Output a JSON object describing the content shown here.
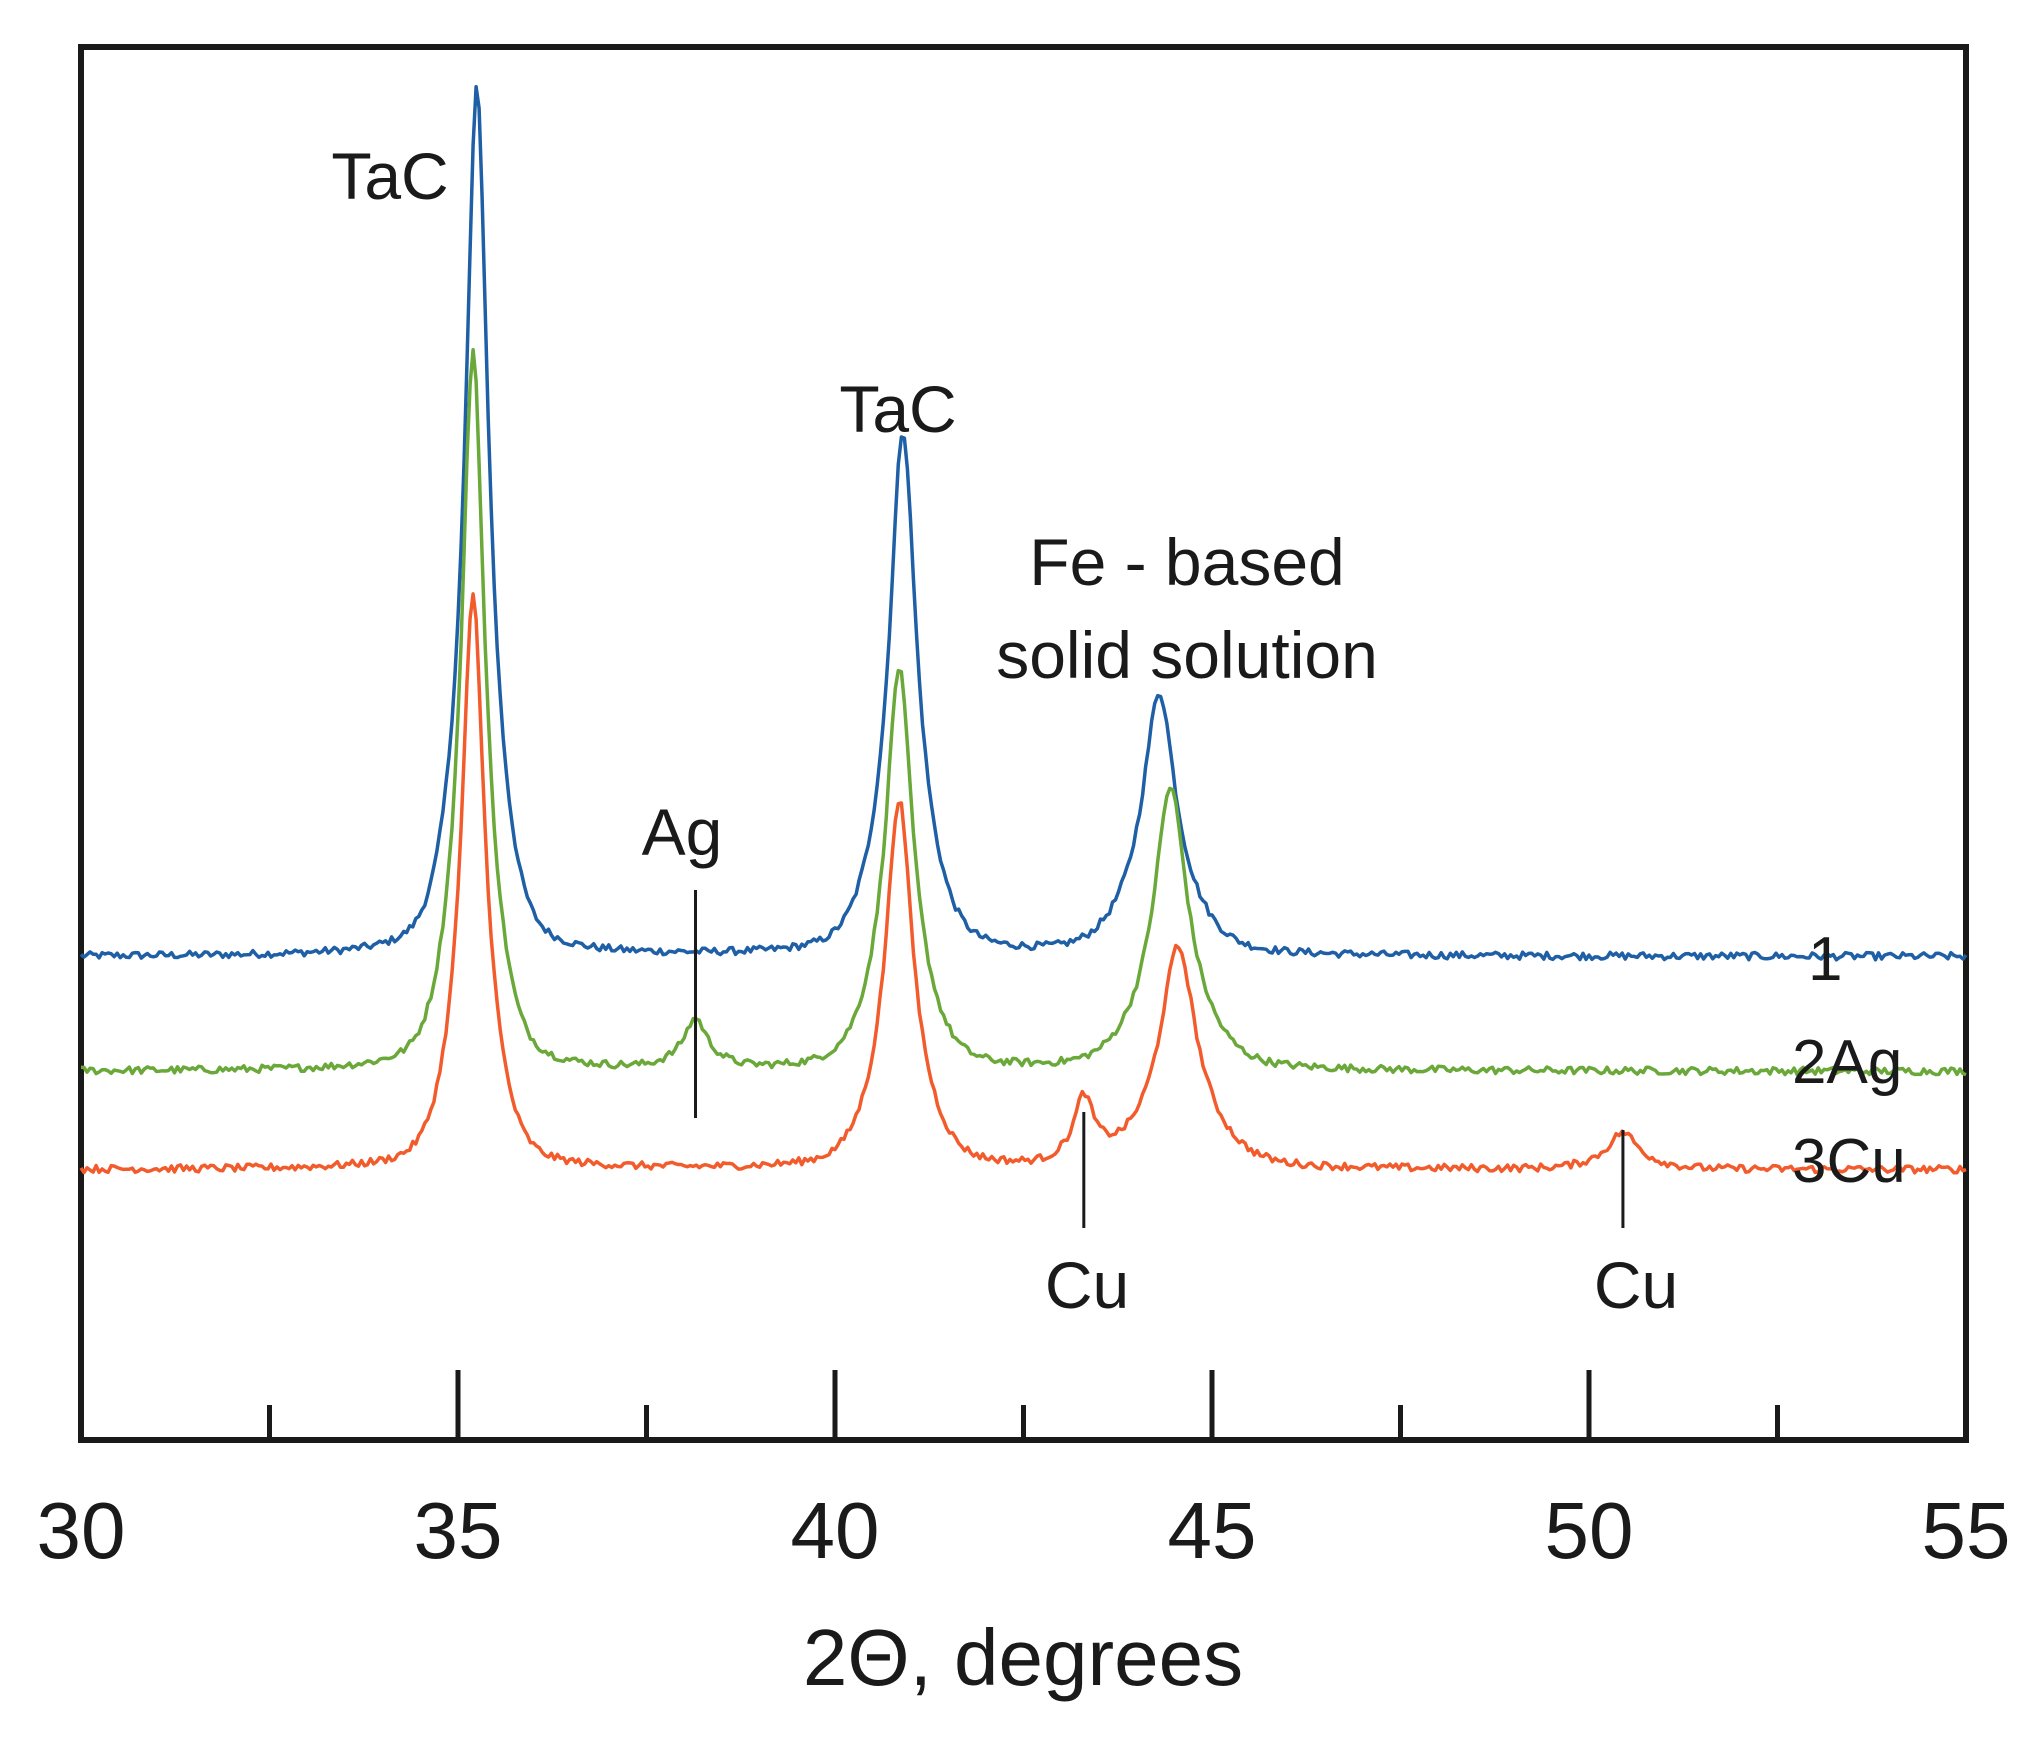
{
  "chart_data": {
    "type": "line",
    "title": "",
    "xlabel": "2Θ, degrees",
    "ylabel": "",
    "xlim": [
      30,
      55
    ],
    "ylim": [
      -2.5,
      14.5
    ],
    "grid": false,
    "x_ticks": [
      {
        "value": 30,
        "label": "30"
      },
      {
        "value": 35,
        "label": "35"
      },
      {
        "value": 40,
        "label": "40"
      },
      {
        "value": 45,
        "label": "45"
      },
      {
        "value": 50,
        "label": "50"
      },
      {
        "value": 55,
        "label": "55"
      }
    ],
    "x_minor_ticks": [
      32.5,
      37.5,
      42.5,
      47.5,
      52.5
    ],
    "series": [
      {
        "name": "1",
        "color": "#1f5fa6",
        "baseline": 3.4,
        "noise": 0.045,
        "peaks": [
          {
            "center": 35.25,
            "height": 10.6,
            "width": 0.17
          },
          {
            "center": 40.9,
            "height": 6.4,
            "width": 0.2
          },
          {
            "center": 44.3,
            "height": 3.2,
            "width": 0.25
          }
        ]
      },
      {
        "name": "2Ag",
        "color": "#6aa83a",
        "baseline": 2.0,
        "noise": 0.045,
        "peaks": [
          {
            "center": 35.2,
            "height": 8.8,
            "width": 0.17
          },
          {
            "center": 40.85,
            "height": 4.9,
            "width": 0.2
          },
          {
            "center": 38.15,
            "height": 0.6,
            "width": 0.17
          },
          {
            "center": 44.45,
            "height": 3.45,
            "width": 0.25
          }
        ]
      },
      {
        "name": "3Cu",
        "color": "#f25c2c",
        "baseline": 0.8,
        "noise": 0.045,
        "peaks": [
          {
            "center": 35.2,
            "height": 7.0,
            "width": 0.17
          },
          {
            "center": 40.85,
            "height": 4.5,
            "width": 0.2
          },
          {
            "center": 43.3,
            "height": 0.8,
            "width": 0.14
          },
          {
            "center": 44.55,
            "height": 2.7,
            "width": 0.27
          },
          {
            "center": 50.45,
            "height": 0.45,
            "width": 0.22
          }
        ]
      }
    ],
    "annotations": [
      {
        "label": "TaC",
        "x": 35.2
      },
      {
        "label": "TaC",
        "x": 40.85
      },
      {
        "label": "Fe - based",
        "x": 44.4
      },
      {
        "label": "solid solution",
        "x": 44.4
      },
      {
        "label": "Ag",
        "x": 38.15
      },
      {
        "label": "Cu",
        "x": 43.3
      },
      {
        "label": "Cu",
        "x": 50.45
      }
    ],
    "series_labels": [
      "1",
      "2Ag",
      "3Cu"
    ]
  }
}
